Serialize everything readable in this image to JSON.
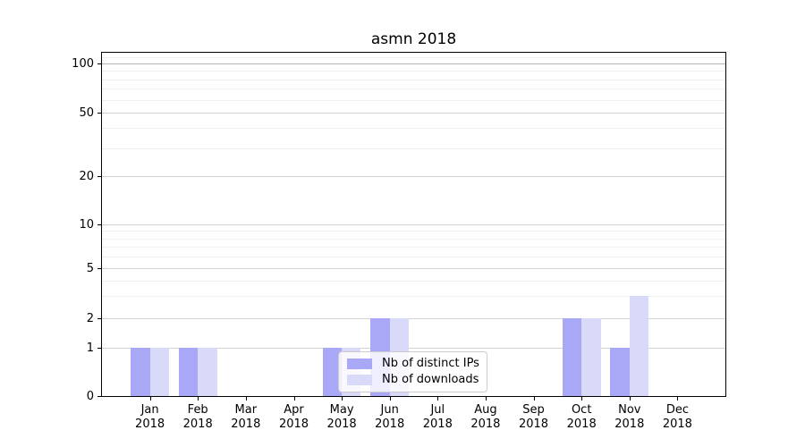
{
  "figure": {
    "background": "#ffffff"
  },
  "chart_data": {
    "type": "bar",
    "title": "asmn 2018",
    "categories": [
      "Jan 2018",
      "Feb 2018",
      "Mar 2018",
      "Apr 2018",
      "May 2018",
      "Jun 2018",
      "Jul 2018",
      "Aug 2018",
      "Sep 2018",
      "Oct 2018",
      "Nov 2018",
      "Dec 2018"
    ],
    "x_tick_line1": [
      "Jan",
      "Feb",
      "Mar",
      "Apr",
      "May",
      "Jun",
      "Jul",
      "Aug",
      "Sep",
      "Oct",
      "Nov",
      "Dec"
    ],
    "x_tick_line2": "2018",
    "series": [
      {
        "name": "Nb of distinct IPs",
        "color": "#a8a8f7",
        "values": [
          1,
          1,
          0,
          0,
          1,
          2,
          0,
          0,
          0,
          2,
          1,
          0
        ]
      },
      {
        "name": "Nb of downloads",
        "color": "#d9d9fa",
        "values": [
          1,
          1,
          0,
          0,
          1,
          2,
          0,
          0,
          0,
          2,
          3,
          0
        ]
      }
    ],
    "yscale": "symlog",
    "ylim": [
      0,
      116
    ],
    "yticks": [
      100,
      50,
      20,
      10,
      5,
      2,
      1,
      0
    ],
    "ytick_labels": [
      "100",
      "50",
      "20",
      "10",
      "5",
      "2",
      "1",
      "0"
    ],
    "minor_yticks": [
      3,
      4,
      6,
      7,
      8,
      9,
      30,
      40,
      60,
      70,
      80,
      90,
      110
    ],
    "grid": true,
    "legend": {
      "position": "inside-lower-center",
      "items": [
        "Nb of distinct IPs",
        "Nb of downloads"
      ]
    }
  }
}
